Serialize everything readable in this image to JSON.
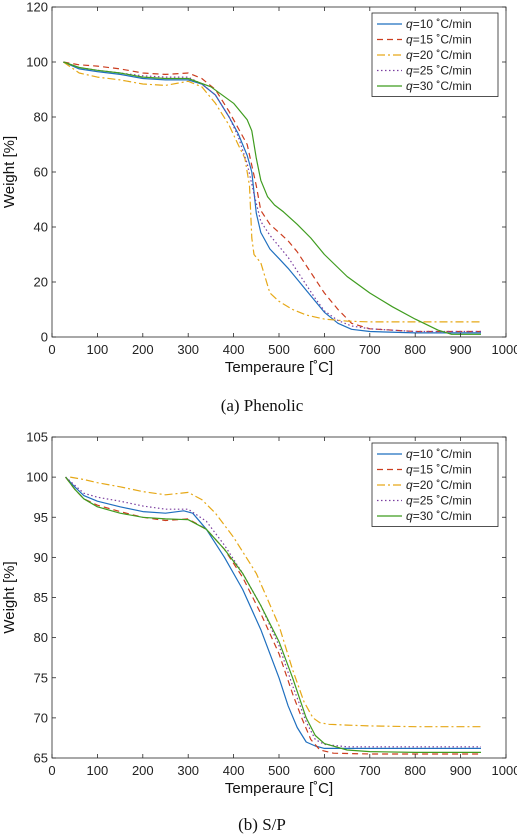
{
  "chart_data": [
    {
      "type": "line",
      "caption": "(a) Phenolic",
      "xlabel": "Temperaure [˚C]",
      "ylabel": "Weight [%]",
      "xlim": [
        0,
        1000
      ],
      "ylim": [
        0,
        120
      ],
      "xticks": [
        0,
        100,
        200,
        300,
        400,
        500,
        600,
        700,
        800,
        900,
        1000
      ],
      "yticks": [
        0,
        20,
        40,
        60,
        80,
        100,
        120
      ],
      "grid": false,
      "legend": "top-right",
      "series": [
        {
          "name": "q=10 ˚C/min",
          "name_var": "q",
          "name_rest": "=10 ˚C/min",
          "color": "#1f6fbf",
          "dash": "",
          "x": [
            25,
            60,
            100,
            150,
            200,
            250,
            300,
            330,
            360,
            390,
            410,
            430,
            440,
            450,
            460,
            480,
            500,
            520,
            540,
            560,
            580,
            600,
            630,
            660,
            700,
            800,
            945
          ],
          "y": [
            100,
            97.5,
            96.5,
            95.5,
            94,
            93.5,
            93.5,
            92,
            88,
            80,
            74,
            66,
            60,
            45,
            38,
            32,
            28.5,
            25,
            21,
            17,
            13,
            9,
            5,
            2.8,
            2,
            1.5,
            1.5
          ]
        },
        {
          "name": "q=15 ˚C/min",
          "name_var": "q",
          "name_rest": "=15 ˚C/min",
          "color": "#cc3d1f",
          "dash": "6,4",
          "x": [
            25,
            60,
            100,
            150,
            200,
            250,
            300,
            330,
            360,
            390,
            410,
            430,
            450,
            460,
            480,
            500,
            520,
            540,
            560,
            580,
            600,
            630,
            660,
            700,
            800,
            945
          ],
          "y": [
            100,
            99,
            98.5,
            97.5,
            96,
            95.5,
            96,
            94,
            90,
            82,
            76,
            70,
            55,
            46,
            41,
            38,
            35,
            31,
            26,
            21,
            16,
            10,
            5,
            3,
            2,
            2
          ]
        },
        {
          "name": "q=20 ˚C/min",
          "name_var": "q",
          "name_rest": "=20 ˚C/min",
          "color": "#e6a817",
          "dash": "8,3,2,3",
          "x": [
            25,
            60,
            100,
            150,
            200,
            250,
            300,
            330,
            360,
            390,
            410,
            425,
            435,
            440,
            445,
            460,
            480,
            500,
            530,
            560,
            600,
            650,
            700,
            800,
            945
          ],
          "y": [
            100,
            96,
            94.5,
            93.5,
            92,
            91.5,
            93,
            91,
            85,
            77,
            70,
            65,
            55,
            36,
            30,
            27,
            16,
            13,
            10,
            8,
            6.5,
            5.8,
            5.5,
            5.5,
            5.5
          ]
        },
        {
          "name": "q=25 ˚C/min",
          "name_var": "q",
          "name_rest": "=25 ˚C/min",
          "color": "#7b3fa0",
          "dash": "1.5,2.5",
          "x": [
            25,
            60,
            100,
            150,
            200,
            250,
            300,
            330,
            360,
            390,
            410,
            430,
            445,
            460,
            480,
            500,
            520,
            540,
            560,
            580,
            600,
            630,
            660,
            700,
            800,
            945
          ],
          "y": [
            100,
            98,
            97,
            96,
            95,
            94.5,
            94.5,
            92,
            88,
            80,
            73,
            63,
            52,
            42,
            37,
            33,
            29,
            24,
            19,
            14,
            9.5,
            6,
            4,
            3,
            2,
            2
          ]
        },
        {
          "name": "q=30 ˚C/min",
          "name_var": "q",
          "name_rest": "=30 ˚C/min",
          "color": "#3f9c1f",
          "dash": "",
          "x": [
            25,
            60,
            100,
            150,
            200,
            250,
            300,
            350,
            400,
            430,
            440,
            450,
            460,
            475,
            490,
            510,
            540,
            570,
            600,
            650,
            700,
            750,
            800,
            850,
            880,
            945
          ],
          "y": [
            100,
            98,
            97,
            96,
            94.5,
            94,
            94,
            91,
            85,
            79,
            75,
            65,
            57,
            51,
            48,
            45.5,
            41,
            36,
            30,
            22,
            16,
            11,
            6.5,
            2.5,
            1,
            1
          ]
        }
      ]
    },
    {
      "type": "line",
      "caption": "(b) S/P",
      "xlabel": "Temperaure [˚C]",
      "ylabel": "Weight [%]",
      "xlim": [
        0,
        1000
      ],
      "ylim": [
        65,
        105
      ],
      "xticks": [
        0,
        100,
        200,
        300,
        400,
        500,
        600,
        700,
        800,
        900,
        1000
      ],
      "yticks": [
        65,
        70,
        75,
        80,
        85,
        90,
        95,
        100,
        105
      ],
      "grid": false,
      "legend": "top-right",
      "series": [
        {
          "name": "q=10 ˚C/min",
          "name_var": "q",
          "name_rest": "=10 ˚C/min",
          "color": "#1f6fbf",
          "dash": "",
          "x": [
            30,
            50,
            70,
            100,
            150,
            200,
            250,
            290,
            310,
            340,
            380,
            420,
            460,
            500,
            520,
            540,
            560,
            580,
            600,
            650,
            700,
            800,
            945
          ],
          "y": [
            100,
            98.8,
            97.7,
            97,
            96.3,
            95.7,
            95.5,
            95.8,
            95.5,
            93.5,
            90,
            86,
            81,
            75,
            71.5,
            68.8,
            67,
            66.5,
            66.2,
            66.2,
            66.2,
            66.2,
            66.2
          ]
        },
        {
          "name": "q=15 ˚C/min",
          "name_var": "q",
          "name_rest": "=15 ˚C/min",
          "color": "#cc3d1f",
          "dash": "6,4",
          "x": [
            30,
            50,
            70,
            100,
            150,
            200,
            250,
            300,
            340,
            380,
            420,
            460,
            500,
            530,
            550,
            570,
            590,
            620,
            700,
            800,
            945
          ],
          "y": [
            100,
            98.5,
            97.3,
            96.5,
            95.7,
            95,
            94.6,
            94.8,
            93.5,
            91,
            87.5,
            83,
            78,
            73,
            70,
            67.3,
            66,
            65.6,
            65.5,
            65.5,
            65.5
          ]
        },
        {
          "name": "q=20 ˚C/min",
          "name_var": "q",
          "name_rest": "=20 ˚C/min",
          "color": "#e6a817",
          "dash": "8,3,2,3",
          "x": [
            40,
            70,
            100,
            150,
            200,
            250,
            300,
            330,
            360,
            400,
            450,
            500,
            530,
            555,
            575,
            590,
            610,
            650,
            700,
            800,
            945
          ],
          "y": [
            100,
            99.7,
            99.3,
            98.8,
            98.2,
            97.8,
            98.1,
            97.2,
            95.5,
            92.5,
            88,
            81.5,
            76,
            72,
            70,
            69.4,
            69.2,
            69.1,
            69,
            68.9,
            68.9
          ]
        },
        {
          "name": "q=25 ˚C/min",
          "name_var": "q",
          "name_rest": "=25 ˚C/min",
          "color": "#7b3fa0",
          "dash": "1.5,2.5",
          "x": [
            30,
            50,
            70,
            100,
            150,
            200,
            250,
            300,
            340,
            380,
            420,
            460,
            500,
            530,
            560,
            580,
            600,
            650,
            700,
            800,
            945
          ],
          "y": [
            100,
            99,
            98,
            97.5,
            97,
            96.4,
            96,
            96,
            94.5,
            91.5,
            88,
            84,
            79,
            74,
            69.5,
            67.3,
            66.7,
            66.4,
            66.4,
            66.4,
            66.4
          ]
        },
        {
          "name": "q=30 ˚C/min",
          "name_var": "q",
          "name_rest": "=30 ˚C/min",
          "color": "#3f9c1f",
          "dash": "",
          "x": [
            30,
            50,
            70,
            100,
            150,
            200,
            250,
            300,
            340,
            380,
            420,
            460,
            500,
            530,
            560,
            580,
            600,
            650,
            700,
            800,
            945
          ],
          "y": [
            100,
            98.5,
            97.3,
            96.3,
            95.5,
            95,
            94.8,
            94.7,
            93.5,
            91,
            88,
            84,
            79.5,
            75,
            70,
            67.8,
            66.8,
            66,
            65.8,
            65.7,
            65.7
          ]
        }
      ]
    }
  ]
}
